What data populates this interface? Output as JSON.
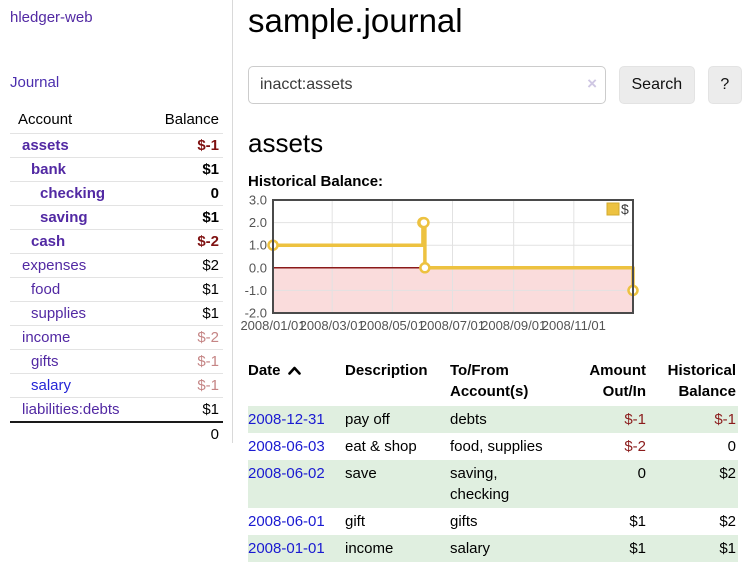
{
  "app": {
    "brand": "hledger-web",
    "nav_journal": "Journal"
  },
  "header": {
    "title": "sample.journal"
  },
  "search": {
    "value": "inacct:assets",
    "clear_icon": "×",
    "button": "Search",
    "help_button": "?"
  },
  "sidebar": {
    "col_account": "Account",
    "col_balance": "Balance",
    "rows": [
      {
        "name": "assets",
        "level": 1,
        "bold": true,
        "balance": "$-1",
        "tone": "negative-strong",
        "link": "purple"
      },
      {
        "name": "bank",
        "level": 2,
        "bold": true,
        "balance": "$1",
        "tone": "normal",
        "link": "purple"
      },
      {
        "name": "checking",
        "level": 3,
        "bold": true,
        "balance": "0",
        "tone": "normal",
        "link": "purple"
      },
      {
        "name": "saving",
        "level": 3,
        "bold": true,
        "balance": "$1",
        "tone": "normal",
        "link": "purple"
      },
      {
        "name": "cash",
        "level": 2,
        "bold": true,
        "balance": "$-2",
        "tone": "negative-strong",
        "link": "purple"
      },
      {
        "name": "expenses",
        "level": 1,
        "bold": false,
        "balance": "$2",
        "tone": "normal",
        "link": "purple"
      },
      {
        "name": "food",
        "level": 2,
        "bold": false,
        "balance": "$1",
        "tone": "normal",
        "link": "purple"
      },
      {
        "name": "supplies",
        "level": 2,
        "bold": false,
        "balance": "$1",
        "tone": "normal",
        "link": "purple"
      },
      {
        "name": "income",
        "level": 1,
        "bold": false,
        "balance": "$-2",
        "tone": "negative-soft",
        "link": "purple"
      },
      {
        "name": "gifts",
        "level": 2,
        "bold": false,
        "balance": "$-1",
        "tone": "negative-soft",
        "link": "purple"
      },
      {
        "name": "salary",
        "level": 2,
        "bold": false,
        "balance": "$-1",
        "tone": "negative-soft",
        "link": "blue"
      },
      {
        "name": "liabilities:debts",
        "level": 1,
        "bold": false,
        "balance": "$1",
        "tone": "normal",
        "link": "purple"
      }
    ],
    "total": "0"
  },
  "register": {
    "heading": "assets",
    "chart_label": "Historical Balance:",
    "headers": [
      "Date",
      "Description",
      "To/From Account(s)",
      "Amount Out/In",
      "Historical Balance"
    ],
    "sort_icon": "chevron-up",
    "rows": [
      {
        "date": "2008-12-31",
        "description": "pay off",
        "accounts": "debts",
        "amount": "$-1",
        "amount_negative": true,
        "balance": "$-1",
        "balance_negative": true,
        "shaded": true
      },
      {
        "date": "2008-06-03",
        "description": "eat & shop",
        "accounts": "food, supplies",
        "amount": "$-2",
        "amount_negative": true,
        "balance": "0",
        "balance_negative": false,
        "shaded": false
      },
      {
        "date": "2008-06-02",
        "description": "save",
        "accounts": "saving, checking",
        "amount": "0",
        "amount_negative": false,
        "balance": "$2",
        "balance_negative": false,
        "shaded": true
      },
      {
        "date": "2008-06-01",
        "description": "gift",
        "accounts": "gifts",
        "amount": "$1",
        "amount_negative": false,
        "balance": "$2",
        "balance_negative": false,
        "shaded": false
      },
      {
        "date": "2008-01-01",
        "description": "income",
        "accounts": "salary",
        "amount": "$1",
        "amount_negative": false,
        "balance": "$1",
        "balance_negative": false,
        "shaded": true
      }
    ]
  },
  "chart_data": {
    "type": "line",
    "step": true,
    "title": "Historical Balance",
    "series": [
      {
        "name": "$",
        "color": "#edc240",
        "points": [
          [
            "2008-01-01",
            1
          ],
          [
            "2008-06-01",
            2
          ],
          [
            "2008-06-02",
            2
          ],
          [
            "2008-06-03",
            0
          ],
          [
            "2008-12-31",
            -1
          ]
        ]
      }
    ],
    "x_range": [
      "2008-01-01",
      "2008-12-31"
    ],
    "ylim": [
      -2,
      3
    ],
    "y_ticks": [
      {
        "v": 3,
        "label": "3.0"
      },
      {
        "v": 2,
        "label": "2.0"
      },
      {
        "v": 1,
        "label": "1.0"
      },
      {
        "v": 0,
        "label": "0.0"
      },
      {
        "v": -1,
        "label": "-1.0"
      },
      {
        "v": -2,
        "label": "-2.0"
      }
    ],
    "x_ticks": [
      {
        "date": "2008-01-01",
        "label": "2008/01/01"
      },
      {
        "date": "2008-03-01",
        "label": "2008/03/01"
      },
      {
        "date": "2008-05-01",
        "label": "2008/05/01"
      },
      {
        "date": "2008-07-01",
        "label": "2008/07/01"
      },
      {
        "date": "2008-09-01",
        "label": "2008/09/01"
      },
      {
        "date": "2008-11-01",
        "label": "2008/11/01"
      }
    ],
    "legend": {
      "label": "$",
      "position": "top-right"
    },
    "grid": true,
    "colors": {
      "line": "#edc240",
      "negative_region": "#fadcdc",
      "zero_line": "#8b1a1a",
      "gridline": "#e2e2e2",
      "border": "#4a4a4a",
      "axis_text": "#545454"
    }
  }
}
